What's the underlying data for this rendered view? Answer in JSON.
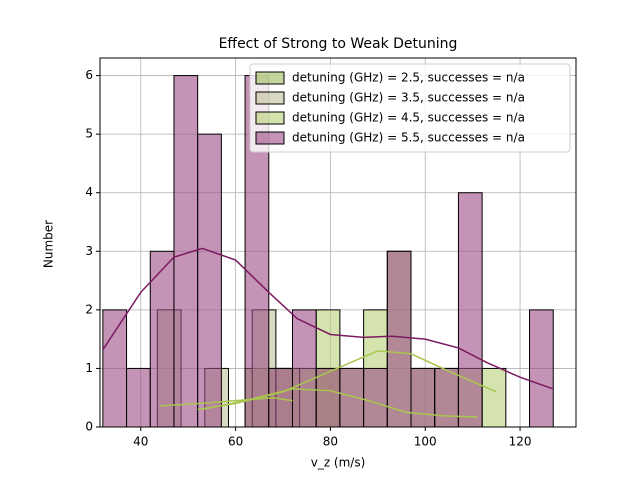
{
  "chart_data": {
    "type": "histogram",
    "title": "Effect of Strong to Weak Detuning",
    "x_label": "v_z (m/s)",
    "y_label": "Number",
    "xlim": [
      31.4,
      131.8
    ],
    "ylim": [
      0,
      6.3
    ],
    "xticks": [
      40,
      60,
      80,
      100,
      120
    ],
    "yticks": [
      0,
      1,
      2,
      3,
      4,
      5,
      6
    ],
    "grid": true,
    "legend": "upper right",
    "series": [
      {
        "name": "detuning (GHz) = 2.5, successes = n/a",
        "color": "#9dbb5a",
        "line_color": "#a9c64c",
        "bins": [
          62,
          67,
          72,
          77,
          82
        ],
        "values": [
          1,
          1,
          1,
          1
        ],
        "kde_x": [
          53,
          62,
          72,
          80,
          88,
          96,
          104,
          111
        ],
        "kde_y": [
          0.3,
          0.45,
          0.65,
          0.62,
          0.45,
          0.25,
          0.19,
          0.17
        ]
      },
      {
        "name": "detuning (GHz) = 3.5, successes = n/a",
        "color": "#c2c19a",
        "line_color": "#a9c64c",
        "bins": [
          43.5,
          48.5,
          53.5,
          58.5,
          63.5,
          68.5,
          73.5
        ],
        "values": [
          2,
          0,
          1,
          0,
          2,
          1
        ],
        "kde_x": [
          44,
          52,
          60,
          68,
          72
        ],
        "kde_y": [
          0.36,
          0.4,
          0.45,
          0.5,
          0.45
        ]
      },
      {
        "name": "detuning (GHz) = 4.5, successes = n/a",
        "color": "#b9d27a",
        "line_color": "#a9c64c",
        "bins": [
          77,
          82,
          87,
          92,
          97,
          102,
          107,
          112,
          117
        ],
        "values": [
          2,
          1,
          2,
          3,
          1,
          1,
          1,
          1
        ],
        "kde_x": [
          52,
          60,
          70,
          80,
          90,
          97,
          105,
          115
        ],
        "kde_y": [
          0.3,
          0.4,
          0.6,
          0.95,
          1.3,
          1.25,
          0.95,
          0.6
        ]
      },
      {
        "name": "detuning (GHz) = 5.5, successes = n/a",
        "color": "#9c4b86",
        "line_color": "#7b1a60",
        "bins": [
          32,
          37,
          42,
          47,
          52,
          57,
          62,
          67,
          72,
          77,
          82,
          87,
          92,
          97,
          102,
          107,
          112,
          117,
          122,
          127
        ],
        "values": [
          2,
          1,
          3,
          6,
          5,
          0,
          6,
          1,
          2,
          1,
          1,
          1,
          3,
          1,
          1,
          4,
          0,
          0,
          2
        ],
        "kde_x": [
          32,
          40,
          47,
          53,
          60,
          67,
          73,
          80,
          87,
          93,
          100,
          107,
          113,
          120,
          127
        ],
        "kde_y": [
          1.32,
          2.3,
          2.9,
          3.05,
          2.85,
          2.3,
          1.85,
          1.58,
          1.53,
          1.55,
          1.5,
          1.35,
          1.1,
          0.85,
          0.65
        ]
      }
    ]
  }
}
